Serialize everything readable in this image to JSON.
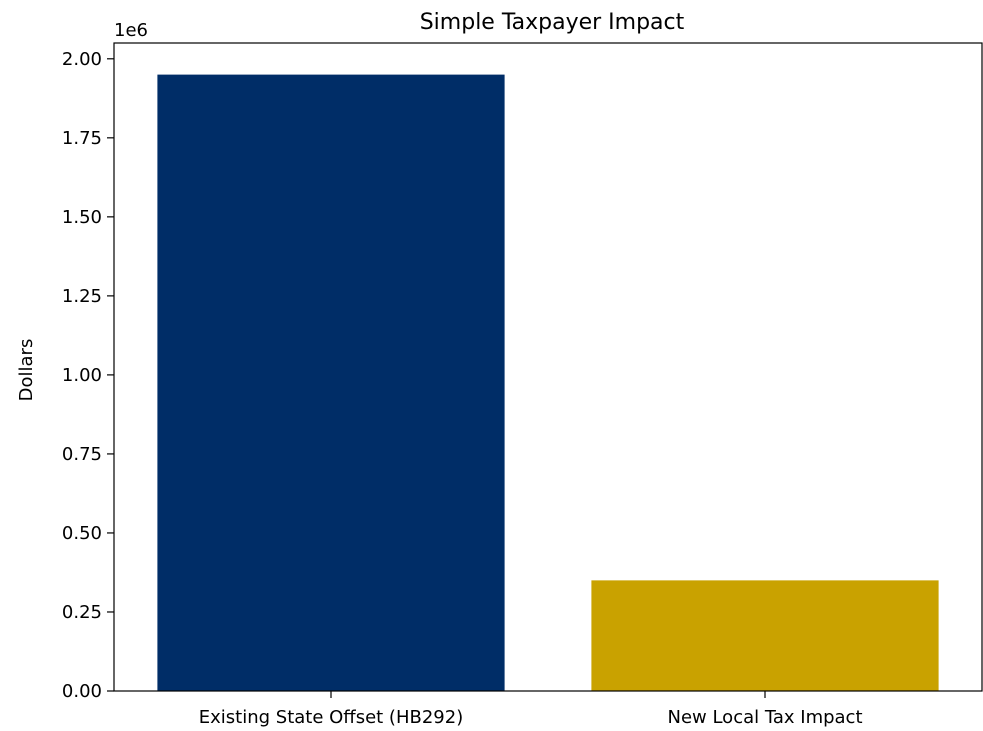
{
  "chart_data": {
    "type": "bar",
    "title": "Simple Taxpayer Impact",
    "xlabel": "",
    "ylabel": "Dollars",
    "scale_label": "1e6",
    "categories": [
      "Existing State Offset (HB292)",
      "New Local Tax Impact"
    ],
    "values": [
      1950000,
      350000
    ],
    "colors": [
      "#002D67",
      "#C9A200"
    ],
    "ylim": [
      0,
      2050000
    ],
    "yticks": [
      0,
      250000,
      500000,
      750000,
      1000000,
      1250000,
      1500000,
      1750000,
      2000000
    ],
    "ytick_labels": [
      "0.00",
      "0.25",
      "0.50",
      "0.75",
      "1.00",
      "1.25",
      "1.50",
      "1.75",
      "2.00"
    ],
    "grid": false,
    "legend": "none"
  }
}
